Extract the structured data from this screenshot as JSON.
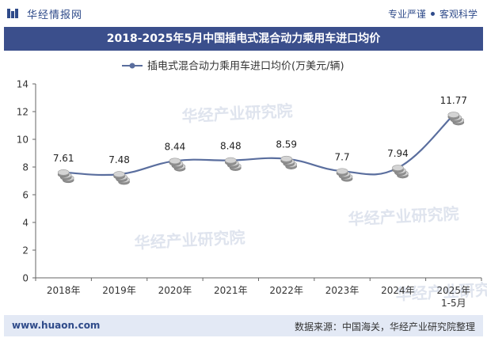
{
  "header": {
    "brand": "华经情报网",
    "slogan_left": "专业严谨",
    "slogan_right": "客观科学"
  },
  "footer": {
    "website": "www.huaon.com",
    "source": "数据来源：中国海关，华经产业研究院整理"
  },
  "watermark": "华经产业研究院",
  "colors": {
    "title_bg": "#3b4f8c",
    "line": "#5a6e9e",
    "brand": "#2f4b8a"
  },
  "chart_data": {
    "type": "line",
    "title": "2018-2025年5月中国插电式混合动力乘用车进口均价",
    "categories": [
      "2018年",
      "2019年",
      "2020年",
      "2021年",
      "2022年",
      "2023年",
      "2024年",
      "2025年\n1-5月"
    ],
    "series": [
      {
        "name": "插电式混合动力乘用车进口均价(万美元/辆)",
        "values": [
          7.61,
          7.48,
          8.44,
          8.48,
          8.59,
          7.7,
          7.94,
          11.77
        ]
      }
    ],
    "ylim": [
      0,
      14
    ],
    "yticks": [
      0,
      2,
      4,
      6,
      8,
      10,
      12,
      14
    ],
    "legend_position": "top-center",
    "grid": false
  }
}
